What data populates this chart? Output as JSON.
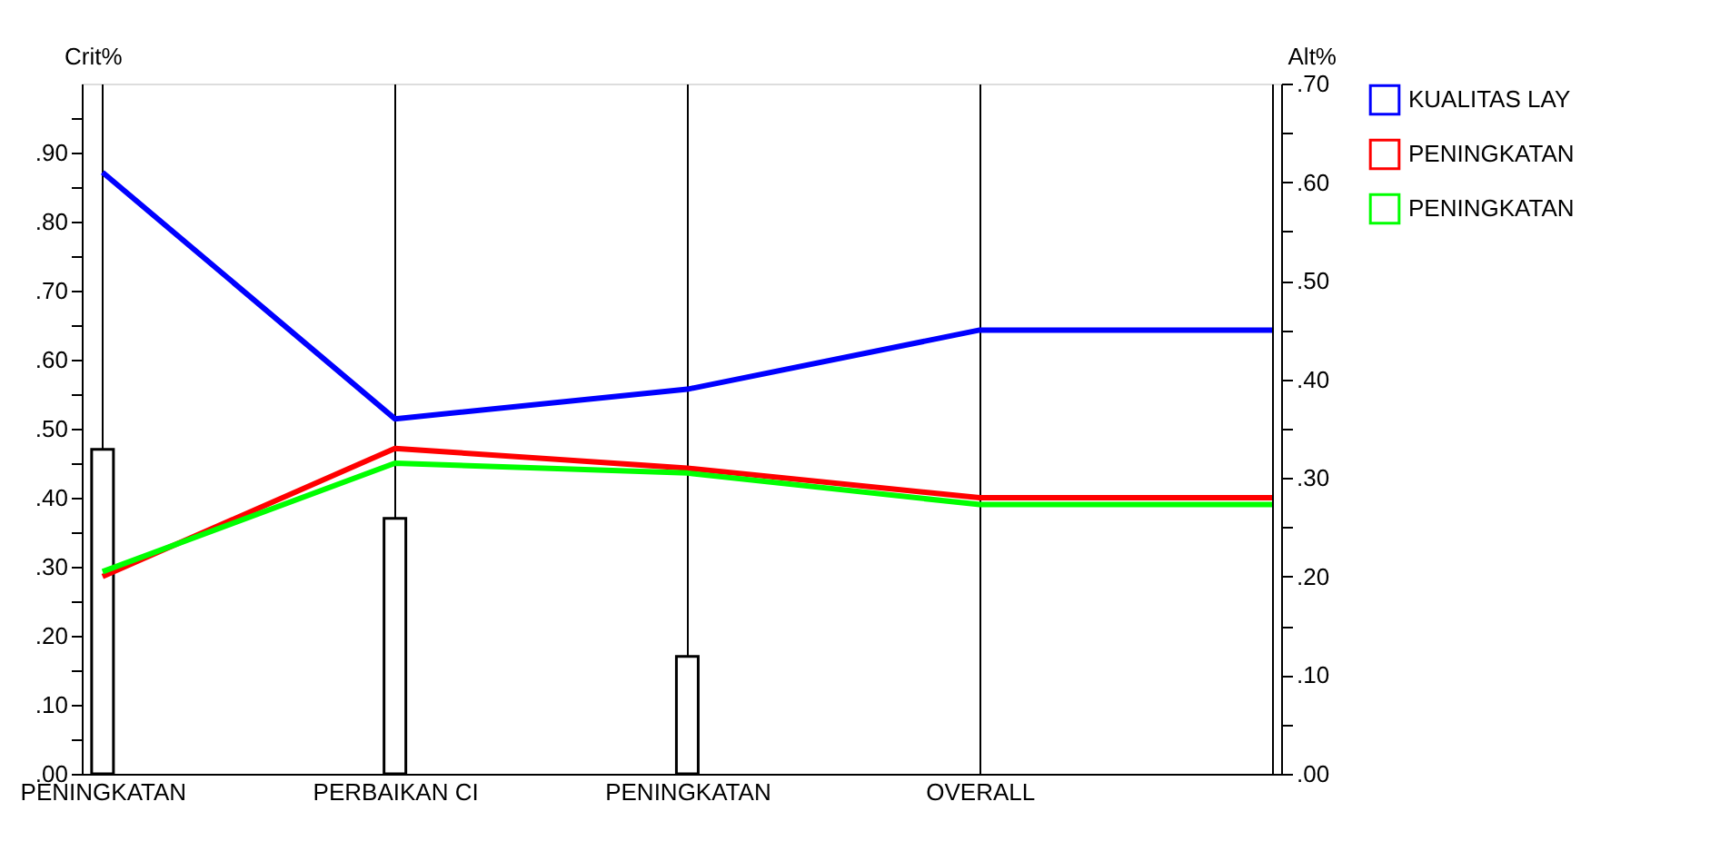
{
  "chart_data": {
    "type": "line",
    "ylabel": "Crit%",
    "y2label": "Alt%",
    "categories": [
      "PENINGKATAN",
      "PERBAIKAN CI",
      "PENINGKATAN",
      "OVERALL",
      null
    ],
    "series": [
      {
        "type": "bar",
        "color": "#ffffff",
        "values": [
          0.47,
          0.37,
          0.17,
          null,
          null
        ]
      },
      {
        "name": "KUALITAS LAY",
        "color": "#0000ff",
        "axis": "y2",
        "values": [
          0.61,
          0.36,
          0.39,
          0.45,
          0.45
        ]
      },
      {
        "name": "PENINGKATAN",
        "color": "#ff0000",
        "axis": "y2",
        "values": [
          0.2,
          0.33,
          0.31,
          0.28,
          0.28
        ]
      },
      {
        "name": "PENINGKATAN",
        "color": "#00ff00",
        "axis": "y2",
        "values": [
          0.205,
          0.315,
          0.305,
          0.273,
          0.273
        ]
      }
    ],
    "ylim": [
      0,
      1.0
    ],
    "yticks": [
      {
        "value": 0,
        "label": ".00"
      },
      {
        "value": 0.05,
        "label": null
      },
      {
        "value": 0.1,
        "label": ".10"
      },
      {
        "value": 0.15,
        "label": null
      },
      {
        "value": 0.2,
        "label": ".20"
      },
      {
        "value": 0.25,
        "label": null
      },
      {
        "value": 0.3,
        "label": ".30"
      },
      {
        "value": 0.35,
        "label": null
      },
      {
        "value": 0.4,
        "label": ".40"
      },
      {
        "value": 0.45,
        "label": null
      },
      {
        "value": 0.5,
        "label": ".50"
      },
      {
        "value": 0.55,
        "label": null
      },
      {
        "value": 0.6,
        "label": ".60"
      },
      {
        "value": 0.65,
        "label": null
      },
      {
        "value": 0.7,
        "label": ".70"
      },
      {
        "value": 0.75,
        "label": null
      },
      {
        "value": 0.8,
        "label": ".80"
      },
      {
        "value": 0.85,
        "label": null
      },
      {
        "value": 0.9,
        "label": ".90"
      },
      {
        "value": 0.95,
        "label": null
      }
    ],
    "y2lim": [
      0,
      0.7
    ],
    "y2ticks": [
      {
        "value": 0,
        "label": ".00"
      },
      {
        "value": 0.05,
        "label": null
      },
      {
        "value": 0.1,
        "label": ".10"
      },
      {
        "value": 0.15,
        "label": null
      },
      {
        "value": 0.2,
        "label": ".20"
      },
      {
        "value": 0.25,
        "label": null
      },
      {
        "value": 0.3,
        "label": ".30"
      },
      {
        "value": 0.35,
        "label": null
      },
      {
        "value": 0.4,
        "label": ".40"
      },
      {
        "value": 0.45,
        "label": null
      },
      {
        "value": 0.5,
        "label": ".50"
      },
      {
        "value": 0.55,
        "label": null
      },
      {
        "value": 0.6,
        "label": ".60"
      },
      {
        "value": 0.65,
        "label": null
      },
      {
        "value": 0.7,
        "label": ".70"
      }
    ],
    "grid": "x",
    "legend": "right",
    "line_style": "solid",
    "marker": "none"
  }
}
